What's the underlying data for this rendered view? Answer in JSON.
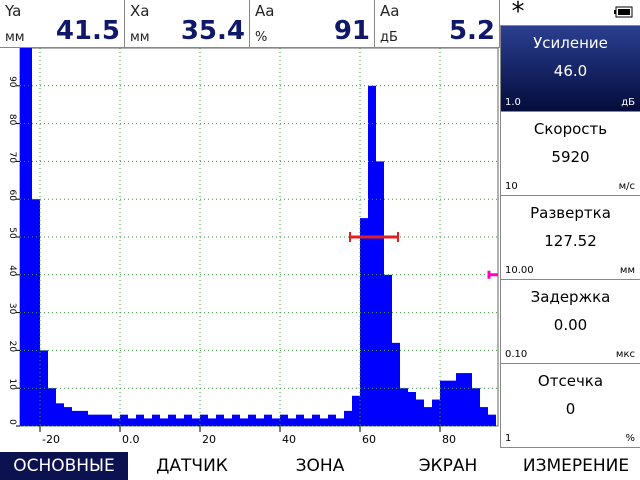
{
  "readouts": [
    {
      "label": "Ya",
      "unit": "мм",
      "value": "41.5"
    },
    {
      "label": "Xa",
      "unit": "мм",
      "value": "35.4"
    },
    {
      "label": "Aa",
      "unit": "%",
      "value": "91"
    },
    {
      "label": "Aa",
      "unit": "дБ",
      "value": "5.2"
    }
  ],
  "params": [
    {
      "title": "Усиление",
      "value": "46.0",
      "step": "1.0",
      "unit": "дБ"
    },
    {
      "title": "Скорость",
      "value": "5920",
      "step": "10",
      "unit": "м/с"
    },
    {
      "title": "Развертка",
      "value": "127.52",
      "step": "10.00",
      "unit": "мм"
    },
    {
      "title": "Задержка",
      "value": "0.00",
      "step": "0.10",
      "unit": "мкс"
    },
    {
      "title": "Отсечка",
      "value": "0",
      "step": "1",
      "unit": "%"
    }
  ],
  "tabs": [
    "ОСНОВНЫЕ",
    "ДАТЧИК",
    "ЗОНА",
    "ЭКРАН",
    "ИЗМЕРЕНИЕ"
  ],
  "chart_data": {
    "type": "area",
    "color": "#0000ff",
    "grid": true,
    "x": [
      -25,
      -23,
      -21,
      -19,
      -17,
      -15,
      -13,
      -11,
      -9,
      -7,
      -5,
      -3,
      -1,
      1,
      3,
      5,
      7,
      9,
      11,
      13,
      15,
      17,
      19,
      21,
      23,
      25,
      27,
      29,
      31,
      33,
      35,
      37,
      39,
      41,
      43,
      45,
      47,
      49,
      51,
      53,
      55,
      57,
      59,
      61,
      63,
      65,
      67,
      69,
      71,
      73,
      75,
      77,
      79,
      81,
      83,
      85,
      87,
      89,
      91,
      93
    ],
    "values": [
      100,
      100,
      60,
      20,
      10,
      6,
      5,
      4,
      4,
      3,
      3,
      3,
      2,
      3,
      2,
      3,
      2,
      3,
      2,
      3,
      2,
      3,
      2,
      3,
      2,
      3,
      2,
      3,
      2,
      3,
      2,
      3,
      2,
      3,
      2,
      3,
      2,
      3,
      2,
      3,
      2,
      4,
      8,
      55,
      90,
      70,
      40,
      22,
      10,
      9,
      7,
      5,
      7,
      12,
      12,
      14,
      14,
      10,
      5,
      3
    ],
    "xlim": [
      -25,
      94.5
    ],
    "ylim": [
      0,
      100
    ],
    "xticks": [
      -20,
      {
        "value": 0,
        "label": "0.0"
      },
      20,
      40,
      60,
      80
    ],
    "yticks": [
      0,
      10,
      20,
      30,
      40,
      50,
      60,
      70,
      80,
      90
    ],
    "gate": {
      "start": 57.5,
      "end": 69.5,
      "level": 50,
      "color": "#e02020"
    },
    "marker_level": 40,
    "marker_color": "#ff00c0"
  }
}
